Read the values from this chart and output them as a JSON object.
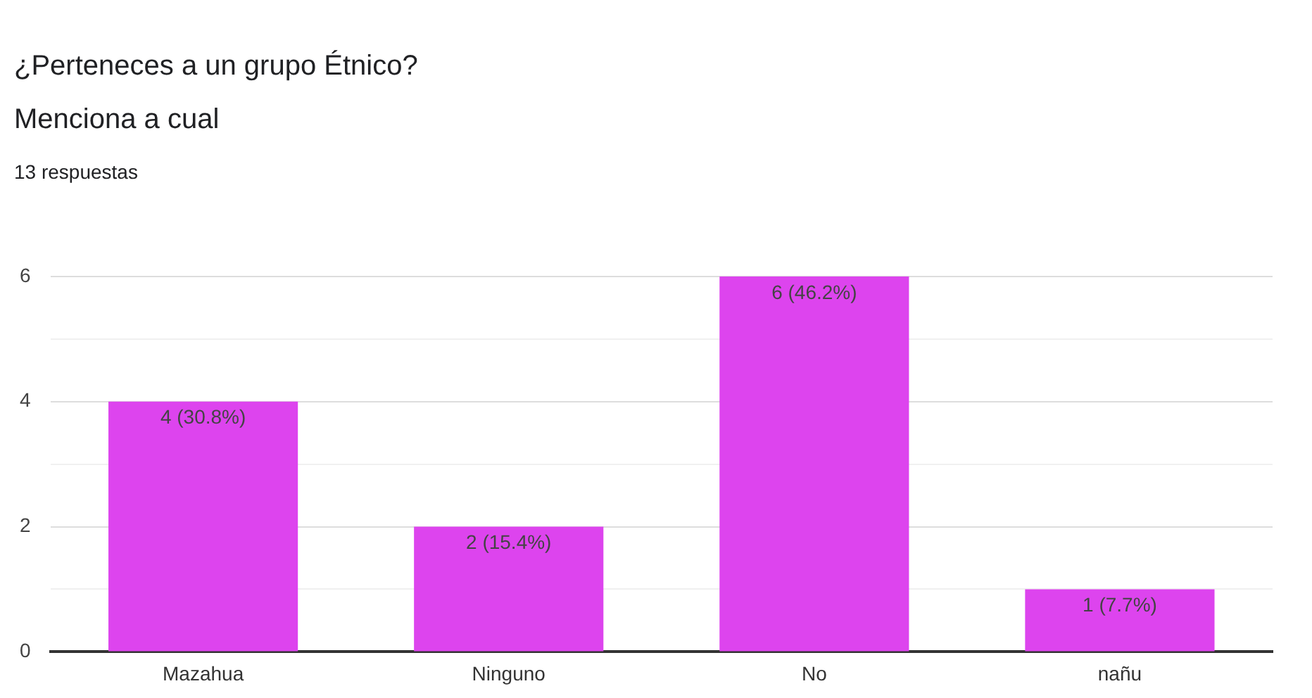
{
  "chart_data": {
    "type": "bar",
    "title": "¿Perteneces a un grupo Étnico? Menciona a cual",
    "subtitle": "13 respuestas",
    "categories": [
      "Mazahua",
      "Ninguno",
      "No",
      "nañu"
    ],
    "values": [
      4,
      2,
      6,
      1
    ],
    "color": "#dd44ee",
    "value_labels": [
      "4 (30.8%)",
      "2 (15.4%)",
      "6 (46.2%)",
      "1 (7.7%)"
    ],
    "ylim": [
      0,
      6
    ],
    "yticks": [
      0,
      {
        "value": 1,
        "label": null
      },
      2,
      {
        "value": 3,
        "label": null
      },
      4,
      {
        "value": 5,
        "label": null
      },
      6
    ],
    "grid": "y",
    "legend": false
  }
}
